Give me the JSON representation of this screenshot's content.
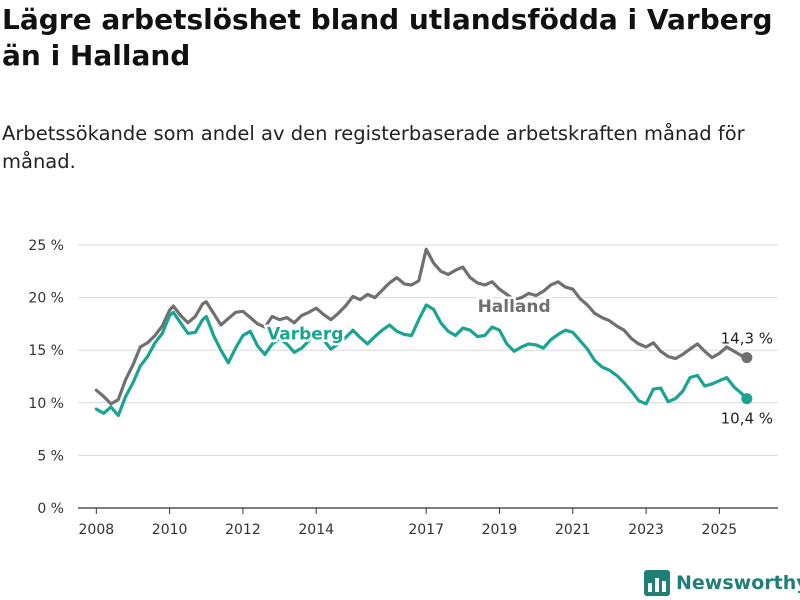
{
  "title": "Lägre arbetslöshet bland utlandsfödda i Varberg än i Halland",
  "subtitle": "Arbetssökande som andel av den registerbaserade arbetskraften månad för månad.",
  "logo_text": "Newsworthy",
  "colors": {
    "halland": "#707070",
    "varberg": "#19a493",
    "grid": "#d9d9d9",
    "axis": "#333333"
  },
  "chart_data": {
    "type": "line",
    "xlim": [
      2007.5,
      2026.6
    ],
    "ylim": [
      0,
      25
    ],
    "x_ticks": [
      2008,
      2010,
      2012,
      2014,
      2017,
      2019,
      2021,
      2023,
      2025
    ],
    "y_ticks": [
      0,
      5,
      10,
      15,
      20,
      25
    ],
    "y_tick_labels": [
      "0 %",
      "5 %",
      "10 %",
      "15 %",
      "20 %",
      "25 %"
    ],
    "grid": "horizontal",
    "series": [
      {
        "name": "Halland",
        "color": "#707070",
        "end_label": "14,3 %",
        "points": [
          [
            2008.0,
            11.2
          ],
          [
            2008.2,
            10.6
          ],
          [
            2008.4,
            9.9
          ],
          [
            2008.6,
            10.3
          ],
          [
            2008.8,
            12.2
          ],
          [
            2009.0,
            13.6
          ],
          [
            2009.2,
            15.3
          ],
          [
            2009.4,
            15.7
          ],
          [
            2009.6,
            16.4
          ],
          [
            2009.8,
            17.3
          ],
          [
            2010.0,
            18.8
          ],
          [
            2010.1,
            19.2
          ],
          [
            2010.3,
            18.3
          ],
          [
            2010.5,
            17.6
          ],
          [
            2010.7,
            18.2
          ],
          [
            2010.9,
            19.4
          ],
          [
            2011.0,
            19.6
          ],
          [
            2011.2,
            18.5
          ],
          [
            2011.4,
            17.4
          ],
          [
            2011.6,
            18.0
          ],
          [
            2011.8,
            18.6
          ],
          [
            2012.0,
            18.7
          ],
          [
            2012.2,
            18.1
          ],
          [
            2012.4,
            17.5
          ],
          [
            2012.6,
            17.2
          ],
          [
            2012.8,
            18.2
          ],
          [
            2013.0,
            17.9
          ],
          [
            2013.2,
            18.1
          ],
          [
            2013.4,
            17.6
          ],
          [
            2013.6,
            18.3
          ],
          [
            2013.8,
            18.6
          ],
          [
            2014.0,
            19.0
          ],
          [
            2014.2,
            18.4
          ],
          [
            2014.4,
            17.9
          ],
          [
            2014.6,
            18.5
          ],
          [
            2014.8,
            19.2
          ],
          [
            2015.0,
            20.1
          ],
          [
            2015.2,
            19.8
          ],
          [
            2015.4,
            20.3
          ],
          [
            2015.6,
            20.0
          ],
          [
            2015.8,
            20.7
          ],
          [
            2016.0,
            21.4
          ],
          [
            2016.2,
            21.9
          ],
          [
            2016.4,
            21.3
          ],
          [
            2016.6,
            21.2
          ],
          [
            2016.8,
            21.6
          ],
          [
            2016.9,
            23.1
          ],
          [
            2017.0,
            24.6
          ],
          [
            2017.2,
            23.3
          ],
          [
            2017.4,
            22.5
          ],
          [
            2017.6,
            22.2
          ],
          [
            2017.8,
            22.6
          ],
          [
            2018.0,
            22.9
          ],
          [
            2018.2,
            21.9
          ],
          [
            2018.4,
            21.4
          ],
          [
            2018.6,
            21.2
          ],
          [
            2018.8,
            21.5
          ],
          [
            2019.0,
            20.8
          ],
          [
            2019.2,
            20.3
          ],
          [
            2019.4,
            19.8
          ],
          [
            2019.6,
            20.0
          ],
          [
            2019.8,
            20.4
          ],
          [
            2020.0,
            20.2
          ],
          [
            2020.2,
            20.6
          ],
          [
            2020.4,
            21.2
          ],
          [
            2020.6,
            21.5
          ],
          [
            2020.8,
            21.0
          ],
          [
            2021.0,
            20.8
          ],
          [
            2021.2,
            19.9
          ],
          [
            2021.4,
            19.3
          ],
          [
            2021.6,
            18.5
          ],
          [
            2021.8,
            18.1
          ],
          [
            2022.0,
            17.8
          ],
          [
            2022.2,
            17.3
          ],
          [
            2022.4,
            16.9
          ],
          [
            2022.6,
            16.1
          ],
          [
            2022.8,
            15.6
          ],
          [
            2023.0,
            15.3
          ],
          [
            2023.2,
            15.7
          ],
          [
            2023.4,
            14.9
          ],
          [
            2023.6,
            14.4
          ],
          [
            2023.8,
            14.2
          ],
          [
            2024.0,
            14.6
          ],
          [
            2024.2,
            15.1
          ],
          [
            2024.4,
            15.6
          ],
          [
            2024.6,
            14.9
          ],
          [
            2024.8,
            14.3
          ],
          [
            2025.0,
            14.7
          ],
          [
            2025.2,
            15.3
          ],
          [
            2025.4,
            14.9
          ],
          [
            2025.6,
            14.5
          ],
          [
            2025.75,
            14.3
          ]
        ]
      },
      {
        "name": "Varberg",
        "color": "#19a493",
        "end_label": "10,4 %",
        "points": [
          [
            2008.0,
            9.4
          ],
          [
            2008.2,
            9.0
          ],
          [
            2008.4,
            9.6
          ],
          [
            2008.6,
            8.8
          ],
          [
            2008.8,
            10.6
          ],
          [
            2009.0,
            11.9
          ],
          [
            2009.2,
            13.5
          ],
          [
            2009.4,
            14.4
          ],
          [
            2009.6,
            15.7
          ],
          [
            2009.8,
            16.6
          ],
          [
            2010.0,
            18.3
          ],
          [
            2010.1,
            18.6
          ],
          [
            2010.3,
            17.6
          ],
          [
            2010.5,
            16.6
          ],
          [
            2010.7,
            16.7
          ],
          [
            2010.9,
            17.9
          ],
          [
            2011.0,
            18.2
          ],
          [
            2011.2,
            16.4
          ],
          [
            2011.4,
            15.0
          ],
          [
            2011.6,
            13.8
          ],
          [
            2011.8,
            15.2
          ],
          [
            2012.0,
            16.4
          ],
          [
            2012.2,
            16.8
          ],
          [
            2012.4,
            15.4
          ],
          [
            2012.6,
            14.6
          ],
          [
            2012.8,
            15.6
          ],
          [
            2013.0,
            16.1
          ],
          [
            2013.2,
            15.6
          ],
          [
            2013.4,
            14.8
          ],
          [
            2013.6,
            15.2
          ],
          [
            2013.8,
            15.9
          ],
          [
            2014.0,
            16.7
          ],
          [
            2014.2,
            16.0
          ],
          [
            2014.4,
            15.1
          ],
          [
            2014.6,
            15.6
          ],
          [
            2014.8,
            16.2
          ],
          [
            2015.0,
            16.9
          ],
          [
            2015.2,
            16.2
          ],
          [
            2015.4,
            15.6
          ],
          [
            2015.6,
            16.3
          ],
          [
            2015.8,
            16.9
          ],
          [
            2016.0,
            17.4
          ],
          [
            2016.2,
            16.8
          ],
          [
            2016.4,
            16.5
          ],
          [
            2016.6,
            16.4
          ],
          [
            2016.8,
            17.9
          ],
          [
            2017.0,
            19.3
          ],
          [
            2017.2,
            18.9
          ],
          [
            2017.4,
            17.6
          ],
          [
            2017.6,
            16.8
          ],
          [
            2017.8,
            16.4
          ],
          [
            2018.0,
            17.1
          ],
          [
            2018.2,
            16.9
          ],
          [
            2018.4,
            16.3
          ],
          [
            2018.6,
            16.4
          ],
          [
            2018.8,
            17.2
          ],
          [
            2019.0,
            16.9
          ],
          [
            2019.2,
            15.6
          ],
          [
            2019.4,
            14.9
          ],
          [
            2019.6,
            15.3
          ],
          [
            2019.8,
            15.6
          ],
          [
            2020.0,
            15.5
          ],
          [
            2020.2,
            15.2
          ],
          [
            2020.4,
            16.0
          ],
          [
            2020.6,
            16.5
          ],
          [
            2020.8,
            16.9
          ],
          [
            2021.0,
            16.7
          ],
          [
            2021.2,
            15.9
          ],
          [
            2021.4,
            15.1
          ],
          [
            2021.6,
            14.0
          ],
          [
            2021.8,
            13.4
          ],
          [
            2022.0,
            13.1
          ],
          [
            2022.2,
            12.6
          ],
          [
            2022.4,
            11.9
          ],
          [
            2022.6,
            11.1
          ],
          [
            2022.8,
            10.2
          ],
          [
            2023.0,
            9.9
          ],
          [
            2023.2,
            11.3
          ],
          [
            2023.4,
            11.4
          ],
          [
            2023.6,
            10.1
          ],
          [
            2023.8,
            10.4
          ],
          [
            2024.0,
            11.1
          ],
          [
            2024.2,
            12.4
          ],
          [
            2024.4,
            12.6
          ],
          [
            2024.6,
            11.6
          ],
          [
            2024.8,
            11.8
          ],
          [
            2025.0,
            12.1
          ],
          [
            2025.2,
            12.4
          ],
          [
            2025.4,
            11.5
          ],
          [
            2025.6,
            10.9
          ],
          [
            2025.75,
            10.4
          ]
        ]
      }
    ]
  }
}
